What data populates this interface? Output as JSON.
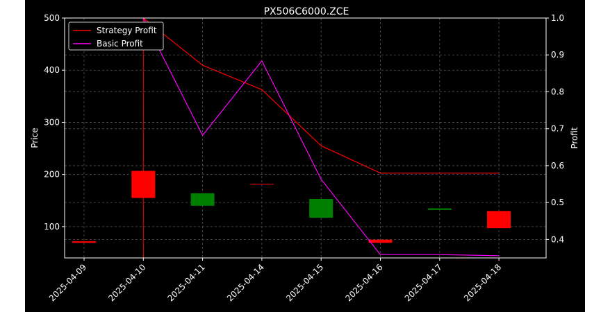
{
  "chart_data": {
    "type": "candlestick+line",
    "title": "PX506C6000.ZCE",
    "xlabel": "",
    "ylabel": "Price",
    "y2label": "Profit",
    "categories": [
      "2025-04-09",
      "2025-04-10",
      "2025-04-11",
      "2025-04-14",
      "2025-04-15",
      "2025-04-16",
      "2025-04-17",
      "2025-04-18"
    ],
    "ylim": [
      40,
      500
    ],
    "y2lim": [
      0.35,
      1.0
    ],
    "yticks": [
      100,
      200,
      300,
      400,
      500
    ],
    "y2ticks": [
      0.4,
      0.5,
      0.6,
      0.7,
      0.8,
      0.9,
      1.0
    ],
    "grid": true,
    "legend_position": "top-left",
    "candles": [
      {
        "date": "2025-04-09",
        "open": 72,
        "close": 69,
        "high": 72,
        "low": 69
      },
      {
        "date": "2025-04-10",
        "open": 207,
        "close": 155,
        "high": 500,
        "low": 40
      },
      {
        "date": "2025-04-11",
        "open": 140,
        "close": 164,
        "high": 164,
        "low": 140
      },
      {
        "date": "2025-04-14",
        "open": 182,
        "close": 181,
        "high": 182,
        "low": 181
      },
      {
        "date": "2025-04-15",
        "open": 117,
        "close": 153,
        "high": 153,
        "low": 117
      },
      {
        "date": "2025-04-16",
        "open": 75,
        "close": 69,
        "high": 75,
        "low": 69
      },
      {
        "date": "2025-04-17",
        "open": 132,
        "close": 135,
        "high": 135,
        "low": 132
      },
      {
        "date": "2025-04-18",
        "open": 130,
        "close": 97,
        "high": 130,
        "low": 97
      }
    ],
    "series": [
      {
        "name": "Strategy Profit",
        "color": "#ff0000",
        "values": [
          null,
          1.0,
          0.872,
          0.806,
          0.654,
          0.58,
          0.58,
          0.58
        ]
      },
      {
        "name": "Basic Profit",
        "color": "#ff00ff",
        "values": [
          null,
          1.0,
          0.682,
          0.884,
          0.563,
          0.359,
          0.359,
          0.356
        ]
      }
    ],
    "colors": {
      "up": "#008000",
      "down": "#ff0000",
      "background": "#000000",
      "text": "#ffffff",
      "grid": "#555555"
    }
  }
}
